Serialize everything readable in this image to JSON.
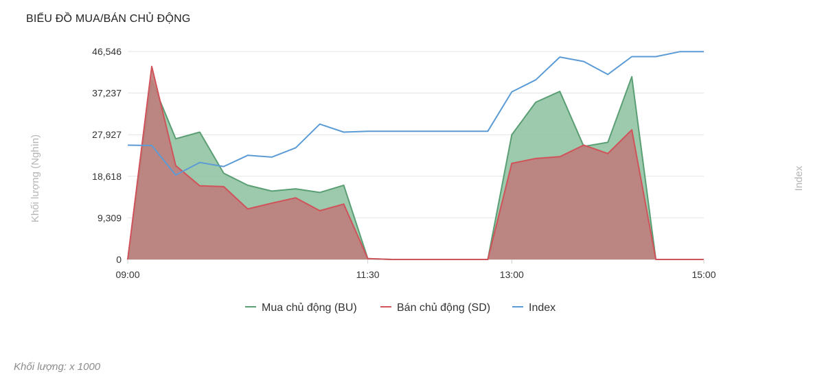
{
  "title": "BIỂU ĐỒ MUA/BÁN CHỦ ĐỘNG",
  "footnote": "Khối lượng: x 1000",
  "chart_data": {
    "type": "area",
    "ylabel": "Khối lượng (Nghìn)",
    "y2label": "Index",
    "ylim": [
      0,
      46546
    ],
    "yticks": [
      "0",
      "9,309",
      "18,618",
      "27,927",
      "37,237",
      "46,546"
    ],
    "ytick_values": [
      0,
      9309,
      18618,
      27927,
      37237,
      46546
    ],
    "x_range": [
      "09:00",
      "15:00"
    ],
    "xticks": [
      "09:00",
      "11:30",
      "13:00",
      "15:00"
    ],
    "x": [
      "09:00",
      "09:15",
      "09:30",
      "09:45",
      "10:00",
      "10:15",
      "10:30",
      "10:45",
      "11:00",
      "11:15",
      "11:30",
      "11:45",
      "12:00",
      "12:15",
      "12:30",
      "12:45",
      "13:00",
      "13:15",
      "13:30",
      "13:45",
      "14:00",
      "14:15",
      "14:30",
      "14:45",
      "15:00"
    ],
    "grid": true,
    "legend_position": "bottom",
    "series": [
      {
        "name": "Mua chủ động (BU)",
        "color": "#5a9e74",
        "fill": "#8cc19e",
        "values": [
          0,
          40000,
          27000,
          28500,
          19300,
          16600,
          15300,
          15800,
          15000,
          16600,
          200,
          0,
          0,
          0,
          0,
          0,
          27900,
          35200,
          37600,
          25300,
          26200,
          40900,
          0,
          0,
          0
        ]
      },
      {
        "name": "Bán chủ động (SD)",
        "color": "#d0525a",
        "fill": "#bf7e7c",
        "values": [
          0,
          43200,
          21000,
          16500,
          16300,
          11300,
          12600,
          13800,
          10900,
          12400,
          200,
          0,
          0,
          0,
          0,
          0,
          21500,
          22600,
          23000,
          25600,
          23700,
          29000,
          0,
          0,
          0
        ]
      },
      {
        "name": "Index",
        "color": "#5b9bd5",
        "values": [
          25570,
          25500,
          18900,
          21700,
          20800,
          23300,
          22900,
          25000,
          30300,
          28500,
          28700,
          28700,
          28700,
          28700,
          28700,
          28700,
          37500,
          40200,
          45300,
          44300,
          41400,
          45400,
          45400,
          46500,
          46500
        ]
      }
    ]
  }
}
